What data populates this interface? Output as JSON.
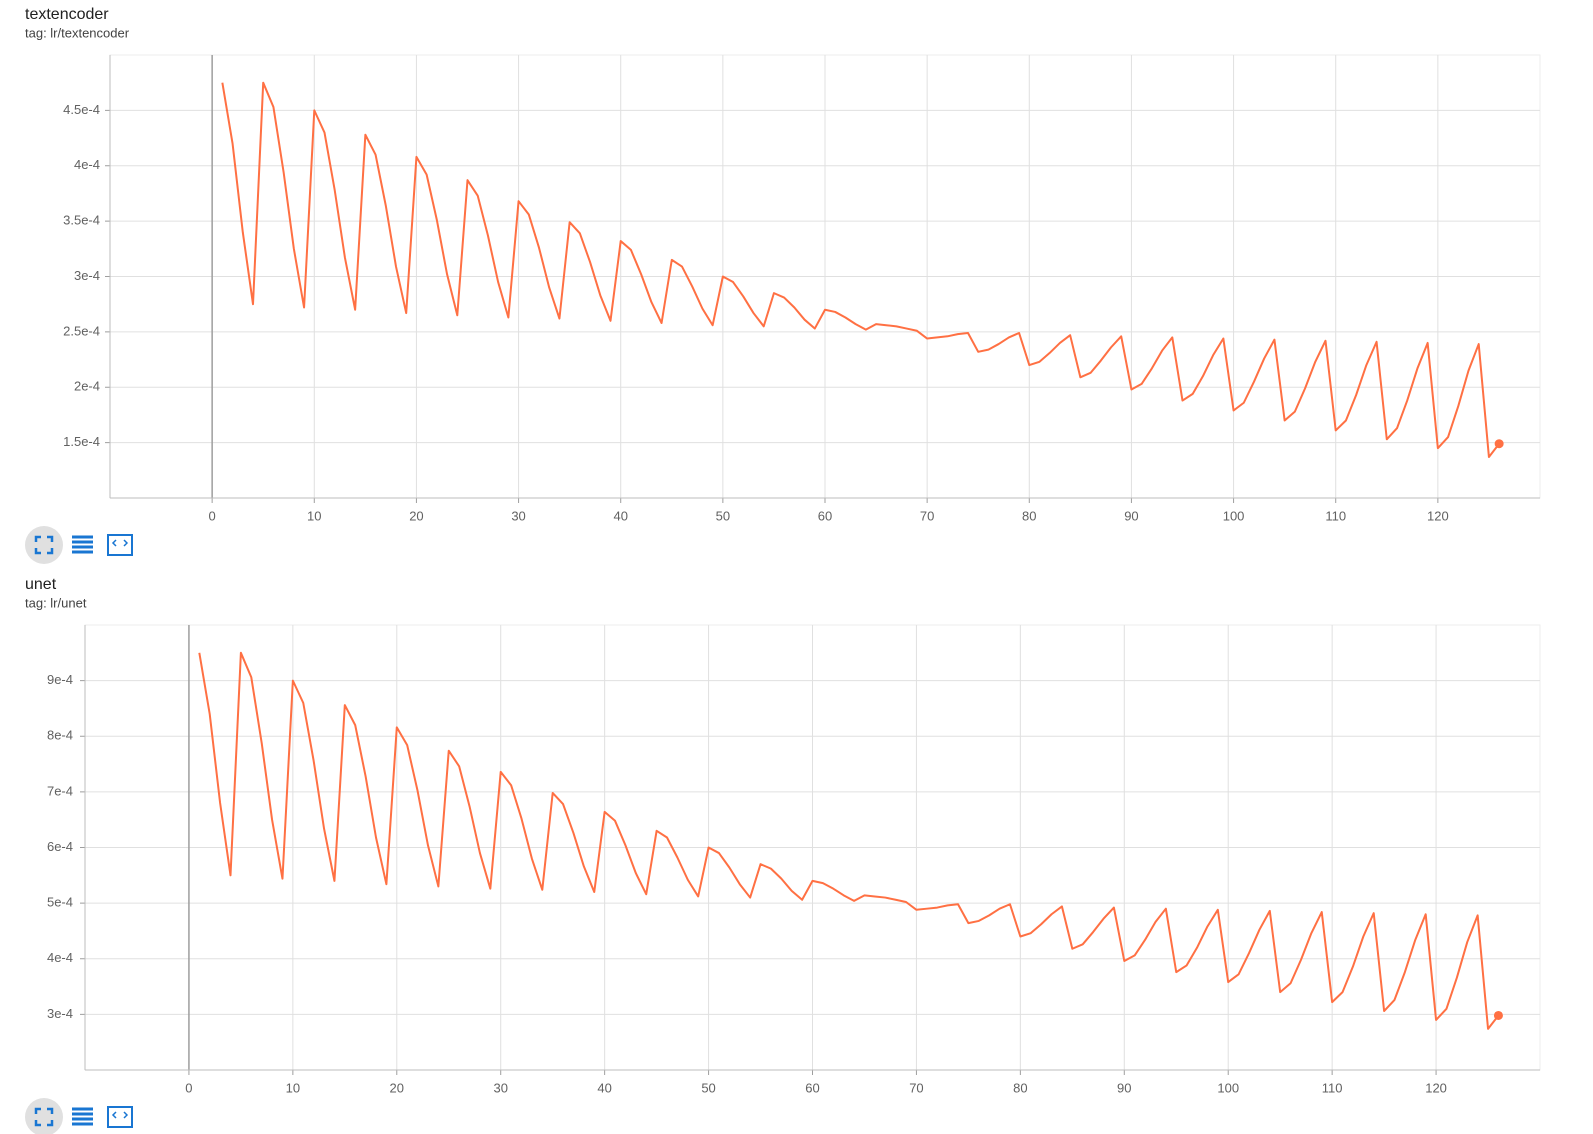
{
  "chart_data": [
    {
      "type": "line",
      "title": "textencoder",
      "subtitle": "tag: lr/textencoder",
      "color": "#ff7043",
      "grid": true,
      "x": [
        1,
        2,
        3,
        4,
        5,
        6,
        7,
        8,
        9,
        10,
        11,
        12,
        13,
        14,
        15,
        16,
        17,
        18,
        19,
        20,
        21,
        22,
        23,
        24,
        25,
        26,
        27,
        28,
        29,
        30,
        31,
        32,
        33,
        34,
        35,
        36,
        37,
        38,
        39,
        40,
        41,
        42,
        43,
        44,
        45,
        46,
        47,
        48,
        49,
        50,
        51,
        52,
        53,
        54,
        55,
        56,
        57,
        58,
        59,
        60,
        61,
        62,
        63,
        64,
        65,
        66,
        67,
        68,
        69,
        70,
        71,
        72,
        73,
        74,
        75,
        76,
        77,
        78,
        79,
        80,
        81,
        82,
        83,
        84,
        85,
        86,
        87,
        88,
        89,
        90,
        91,
        92,
        93,
        94,
        95,
        96,
        97,
        98,
        99,
        100,
        101,
        102,
        103,
        104,
        105,
        106,
        107,
        108,
        109,
        110,
        111,
        112,
        113,
        114,
        115,
        116,
        117,
        118,
        119,
        120,
        121,
        122,
        123,
        124,
        125,
        126
      ],
      "values": [
        0.000475,
        0.00042,
        0.00034,
        0.000275,
        0.000475,
        0.000453,
        0.000394,
        0.000325,
        0.000272,
        0.00045,
        0.00043,
        0.000378,
        0.000317,
        0.00027,
        0.000428,
        0.00041,
        0.000364,
        0.000309,
        0.000267,
        0.000408,
        0.000392,
        0.000351,
        0.000302,
        0.000265,
        0.000387,
        0.000373,
        0.000337,
        0.000295,
        0.000263,
        0.000368,
        0.000356,
        0.000326,
        0.00029,
        0.000262,
        0.000349,
        0.000339,
        0.000313,
        0.000283,
        0.00026,
        0.000332,
        0.000324,
        0.000302,
        0.000277,
        0.000258,
        0.000315,
        0.000309,
        0.000291,
        0.000271,
        0.000256,
        0.0003,
        0.000295,
        0.000282,
        0.000267,
        0.000255,
        0.000285,
        0.000281,
        0.000272,
        0.000261,
        0.000253,
        0.00027,
        0.000268,
        0.000263,
        0.000257,
        0.000252,
        0.000257,
        0.000256,
        0.000255,
        0.000253,
        0.000251,
        0.000244,
        0.000245,
        0.000246,
        0.000248,
        0.000249,
        0.000232,
        0.000234,
        0.000239,
        0.000245,
        0.000249,
        0.00022,
        0.000223,
        0.000231,
        0.00024,
        0.000247,
        0.000209,
        0.000213,
        0.000224,
        0.000236,
        0.000246,
        0.000198,
        0.000203,
        0.000217,
        0.000233,
        0.000245,
        0.000188,
        0.000194,
        0.00021,
        0.000229,
        0.000244,
        0.000179,
        0.000186,
        0.000205,
        0.000226,
        0.000243,
        0.00017,
        0.000178,
        0.000199,
        0.000223,
        0.000242,
        0.000161,
        0.00017,
        0.000193,
        0.00022,
        0.000241,
        0.000153,
        0.000163,
        0.000188,
        0.000217,
        0.00024,
        0.000145,
        0.000155,
        0.000183,
        0.000215,
        0.000239,
        0.000137,
        0.000149
      ],
      "xlim": [
        -10,
        130
      ],
      "xticks": [
        0,
        10,
        20,
        30,
        40,
        50,
        60,
        70,
        80,
        90,
        100,
        110,
        120
      ],
      "ylim": [
        0.0001,
        0.0005
      ],
      "yticks": [
        {
          "value": 0.00015,
          "label": "1.5e-4"
        },
        {
          "value": 0.0002,
          "label": "2e-4"
        },
        {
          "value": 0.00025,
          "label": "2.5e-4"
        },
        {
          "value": 0.0003,
          "label": "3e-4"
        },
        {
          "value": 0.00035,
          "label": "3.5e-4"
        },
        {
          "value": 0.0004,
          "label": "4e-4"
        },
        {
          "value": 0.00045,
          "label": "4.5e-4"
        }
      ]
    },
    {
      "type": "line",
      "title": "unet",
      "subtitle": "tag: lr/unet",
      "color": "#ff7043",
      "grid": true,
      "x": [
        1,
        2,
        3,
        4,
        5,
        6,
        7,
        8,
        9,
        10,
        11,
        12,
        13,
        14,
        15,
        16,
        17,
        18,
        19,
        20,
        21,
        22,
        23,
        24,
        25,
        26,
        27,
        28,
        29,
        30,
        31,
        32,
        33,
        34,
        35,
        36,
        37,
        38,
        39,
        40,
        41,
        42,
        43,
        44,
        45,
        46,
        47,
        48,
        49,
        50,
        51,
        52,
        53,
        54,
        55,
        56,
        57,
        58,
        59,
        60,
        61,
        62,
        63,
        64,
        65,
        66,
        67,
        68,
        69,
        70,
        71,
        72,
        73,
        74,
        75,
        76,
        77,
        78,
        79,
        80,
        81,
        82,
        83,
        84,
        85,
        86,
        87,
        88,
        89,
        90,
        91,
        92,
        93,
        94,
        95,
        96,
        97,
        98,
        99,
        100,
        101,
        102,
        103,
        104,
        105,
        106,
        107,
        108,
        109,
        110,
        111,
        112,
        113,
        114,
        115,
        116,
        117,
        118,
        119,
        120,
        121,
        122,
        123,
        124,
        125,
        126
      ],
      "values": [
        0.00095,
        0.00084,
        0.00068,
        0.00055,
        0.00095,
        0.000906,
        0.000788,
        0.00065,
        0.000544,
        0.0009,
        0.00086,
        0.000756,
        0.000634,
        0.00054,
        0.000856,
        0.00082,
        0.000728,
        0.000618,
        0.000534,
        0.000816,
        0.000784,
        0.000702,
        0.000604,
        0.00053,
        0.000774,
        0.000746,
        0.000674,
        0.00059,
        0.000526,
        0.000736,
        0.000712,
        0.000652,
        0.00058,
        0.000524,
        0.000698,
        0.000678,
        0.000626,
        0.000566,
        0.00052,
        0.000664,
        0.000648,
        0.000604,
        0.000554,
        0.000516,
        0.00063,
        0.000618,
        0.000582,
        0.000542,
        0.000512,
        0.0006,
        0.00059,
        0.000564,
        0.000534,
        0.00051,
        0.00057,
        0.000562,
        0.000544,
        0.000522,
        0.000506,
        0.00054,
        0.000536,
        0.000526,
        0.000514,
        0.000504,
        0.000514,
        0.000512,
        0.00051,
        0.000506,
        0.000502,
        0.000488,
        0.00049,
        0.000492,
        0.000496,
        0.000498,
        0.000464,
        0.000468,
        0.000478,
        0.00049,
        0.000498,
        0.00044,
        0.000446,
        0.000462,
        0.00048,
        0.000494,
        0.000418,
        0.000426,
        0.000448,
        0.000472,
        0.000492,
        0.000396,
        0.000406,
        0.000434,
        0.000466,
        0.00049,
        0.000376,
        0.000388,
        0.00042,
        0.000458,
        0.000488,
        0.000358,
        0.000372,
        0.00041,
        0.000452,
        0.000486,
        0.00034,
        0.000356,
        0.000398,
        0.000446,
        0.000484,
        0.000322,
        0.00034,
        0.000386,
        0.00044,
        0.000482,
        0.000306,
        0.000326,
        0.000376,
        0.000434,
        0.00048,
        0.00029,
        0.00031,
        0.000366,
        0.00043,
        0.000478,
        0.000274,
        0.000298
      ],
      "xlim": [
        -10,
        130
      ],
      "xticks": [
        0,
        10,
        20,
        30,
        40,
        50,
        60,
        70,
        80,
        90,
        100,
        110,
        120
      ],
      "ylim": [
        0.0002,
        0.001
      ],
      "yticks": [
        {
          "value": 0.0003,
          "label": "3e-4"
        },
        {
          "value": 0.0004,
          "label": "4e-4"
        },
        {
          "value": 0.0005,
          "label": "5e-4"
        },
        {
          "value": 0.0006,
          "label": "6e-4"
        },
        {
          "value": 0.0007,
          "label": "7e-4"
        },
        {
          "value": 0.0008,
          "label": "8e-4"
        },
        {
          "value": 0.0009,
          "label": "9e-4"
        }
      ]
    }
  ]
}
